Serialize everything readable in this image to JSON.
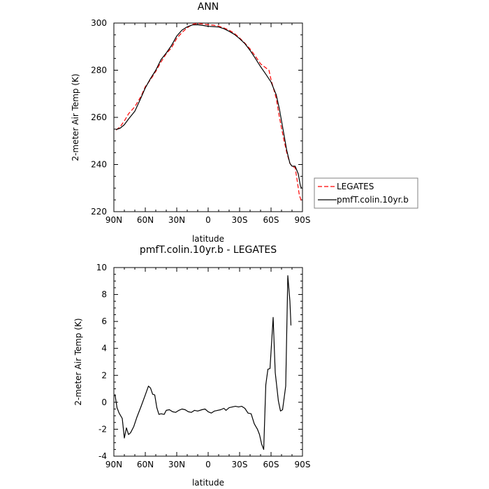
{
  "chart_data": [
    {
      "type": "line",
      "title": "ANN",
      "xlabel": "latitude",
      "ylabel": "2-meter Air Temp (K)",
      "xlim": [
        -90,
        90
      ],
      "ylim": [
        220,
        300
      ],
      "x_ticks": [
        {
          "value": -90,
          "label": "90N"
        },
        {
          "value": -60,
          "label": "60N"
        },
        {
          "value": -30,
          "label": "30N"
        },
        {
          "value": 0,
          "label": "0"
        },
        {
          "value": 30,
          "label": "30S"
        },
        {
          "value": 60,
          "label": "60S"
        },
        {
          "value": 90,
          "label": "90S"
        }
      ],
      "y_ticks": [
        220,
        240,
        260,
        280,
        300
      ],
      "legend_position": "right",
      "series": [
        {
          "name": "LEGATES",
          "color": "#ff0000",
          "dash": true,
          "points": [
            [
              -88,
              254.6
            ],
            [
              -84,
              256
            ],
            [
              -80,
              258.5
            ],
            [
              -76,
              261.5
            ],
            [
              -70,
              264.5
            ],
            [
              -64,
              269
            ],
            [
              -60,
              273
            ],
            [
              -55,
              276
            ],
            [
              -50,
              279.5
            ],
            [
              -45,
              283.5
            ],
            [
              -40,
              287
            ],
            [
              -35,
              289.5
            ],
            [
              -30,
              293.5
            ],
            [
              -25,
              296
            ],
            [
              -20,
              298
            ],
            [
              -15,
              299.5
            ],
            [
              -10,
              299.8
            ],
            [
              -5,
              299.6
            ],
            [
              0,
              299.3
            ],
            [
              5,
              299.1
            ],
            [
              10,
              298.7
            ],
            [
              15,
              297.9
            ],
            [
              20,
              297
            ],
            [
              25,
              295.6
            ],
            [
              30,
              293.7
            ],
            [
              35,
              291.5
            ],
            [
              40,
              289
            ],
            [
              45,
              286
            ],
            [
              50,
              282.7
            ],
            [
              55,
              281
            ],
            [
              58,
              280
            ],
            [
              60,
              276
            ],
            [
              65,
              268
            ],
            [
              68,
              260
            ],
            [
              72,
              251
            ],
            [
              75,
              245
            ],
            [
              78,
              240.5
            ],
            [
              80,
              239.3
            ],
            [
              83,
              238.7
            ],
            [
              85,
              233
            ],
            [
              87,
              227
            ],
            [
              89,
              224.5
            ]
          ]
        },
        {
          "name": "pmfT.colin.10yr.b",
          "color": "#000000",
          "dash": false,
          "points": [
            [
              -88,
              254.8
            ],
            [
              -84,
              255.4
            ],
            [
              -80,
              256.9
            ],
            [
              -76,
              259.3
            ],
            [
              -70,
              262.6
            ],
            [
              -65,
              267.4
            ],
            [
              -60,
              272.5
            ],
            [
              -55,
              276.5
            ],
            [
              -50,
              280
            ],
            [
              -45,
              284.5
            ],
            [
              -40,
              287.3
            ],
            [
              -35,
              290.5
            ],
            [
              -30,
              294.5
            ],
            [
              -25,
              297
            ],
            [
              -20,
              298.4
            ],
            [
              -15,
              299.2
            ],
            [
              -10,
              299.3
            ],
            [
              -5,
              299
            ],
            [
              0,
              298.6
            ],
            [
              5,
              298.5
            ],
            [
              10,
              298.3
            ],
            [
              15,
              297.6
            ],
            [
              20,
              296.5
            ],
            [
              25,
              295.2
            ],
            [
              30,
              293.4
            ],
            [
              35,
              291.3
            ],
            [
              40,
              288.4
            ],
            [
              45,
              285
            ],
            [
              50,
              281.5
            ],
            [
              55,
              278.3
            ],
            [
              60,
              275
            ],
            [
              65,
              269.5
            ],
            [
              68,
              263.5
            ],
            [
              72,
              253.5
            ],
            [
              75,
              246
            ],
            [
              78,
              240.5
            ],
            [
              80,
              239.3
            ],
            [
              83,
              239.3
            ],
            [
              86,
              236
            ],
            [
              88,
              231
            ],
            [
              89,
              230
            ]
          ]
        }
      ]
    },
    {
      "type": "line",
      "title": "pmfT.colin.10yr.b - LEGATES",
      "xlabel": "latitude",
      "ylabel": "2-meter Air Temp (K)",
      "xlim": [
        -90,
        90
      ],
      "ylim": [
        -4,
        10
      ],
      "x_ticks": [
        {
          "value": -90,
          "label": "90N"
        },
        {
          "value": -60,
          "label": "60N"
        },
        {
          "value": -30,
          "label": "30N"
        },
        {
          "value": 0,
          "label": "0"
        },
        {
          "value": 30,
          "label": "30S"
        },
        {
          "value": 60,
          "label": "60S"
        },
        {
          "value": 90,
          "label": "90S"
        }
      ],
      "y_ticks": [
        -4,
        -2,
        0,
        2,
        4,
        6,
        8,
        10
      ],
      "series": [
        {
          "color": "#000000",
          "dash": false,
          "points": [
            [
              -89,
              0.6
            ],
            [
              -87,
              -0.4
            ],
            [
              -85,
              -0.8
            ],
            [
              -82,
              -1.2
            ],
            [
              -80,
              -2.65
            ],
            [
              -78,
              -1.9
            ],
            [
              -76,
              -2.4
            ],
            [
              -74,
              -2.25
            ],
            [
              -71,
              -1.8
            ],
            [
              -68,
              -1.1
            ],
            [
              -64,
              -0.3
            ],
            [
              -60,
              0.55
            ],
            [
              -57,
              1.2
            ],
            [
              -55,
              1.05
            ],
            [
              -53,
              0.6
            ],
            [
              -51,
              0.55
            ],
            [
              -49,
              -0.4
            ],
            [
              -47,
              -0.9
            ],
            [
              -45,
              -0.85
            ],
            [
              -42,
              -0.9
            ],
            [
              -40,
              -0.6
            ],
            [
              -37,
              -0.55
            ],
            [
              -34,
              -0.7
            ],
            [
              -31,
              -0.75
            ],
            [
              -28,
              -0.6
            ],
            [
              -25,
              -0.5
            ],
            [
              -22,
              -0.55
            ],
            [
              -19,
              -0.7
            ],
            [
              -16,
              -0.75
            ],
            [
              -13,
              -0.6
            ],
            [
              -10,
              -0.65
            ],
            [
              -6,
              -0.55
            ],
            [
              -3,
              -0.5
            ],
            [
              0,
              -0.7
            ],
            [
              3,
              -0.8
            ],
            [
              6,
              -0.65
            ],
            [
              9,
              -0.6
            ],
            [
              12,
              -0.55
            ],
            [
              15,
              -0.45
            ],
            [
              17,
              -0.6
            ],
            [
              20,
              -0.4
            ],
            [
              23,
              -0.35
            ],
            [
              26,
              -0.3
            ],
            [
              29,
              -0.35
            ],
            [
              32,
              -0.3
            ],
            [
              35,
              -0.45
            ],
            [
              38,
              -0.8
            ],
            [
              41,
              -0.85
            ],
            [
              44,
              -1.6
            ],
            [
              47,
              -2.0
            ],
            [
              49,
              -2.4
            ],
            [
              51,
              -3.1
            ],
            [
              53,
              -3.5
            ],
            [
              55,
              1.3
            ],
            [
              57,
              2.45
            ],
            [
              59,
              2.5
            ],
            [
              62,
              6.3
            ],
            [
              64,
              2.2
            ],
            [
              67,
              0.1
            ],
            [
              69,
              -0.65
            ],
            [
              71,
              -0.55
            ],
            [
              74,
              1.2
            ],
            [
              76,
              9.4
            ],
            [
              78,
              7.5
            ],
            [
              79,
              5.7
            ]
          ]
        }
      ]
    }
  ]
}
